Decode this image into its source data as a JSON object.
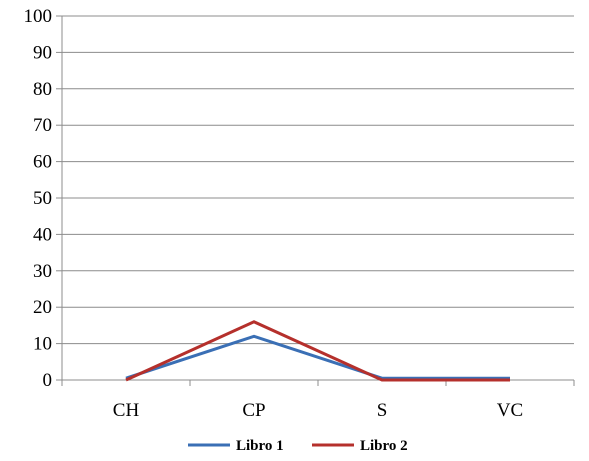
{
  "chart_data": {
    "type": "line",
    "categories": [
      "CH",
      "CP",
      "S",
      "VC"
    ],
    "series": [
      {
        "name": "Libro 1",
        "color": "#3A6FB5",
        "values": [
          0.5,
          12,
          0.5,
          0.5
        ]
      },
      {
        "name": "Libro 2",
        "color": "#B5302C",
        "values": [
          0,
          16,
          0,
          0
        ]
      }
    ],
    "ylim": [
      0,
      100
    ],
    "yticks": [
      "0",
      "10",
      "20",
      "30",
      "40",
      "50",
      "60",
      "70",
      "80",
      "90",
      "100"
    ],
    "grid": true,
    "legend": "bottom"
  }
}
